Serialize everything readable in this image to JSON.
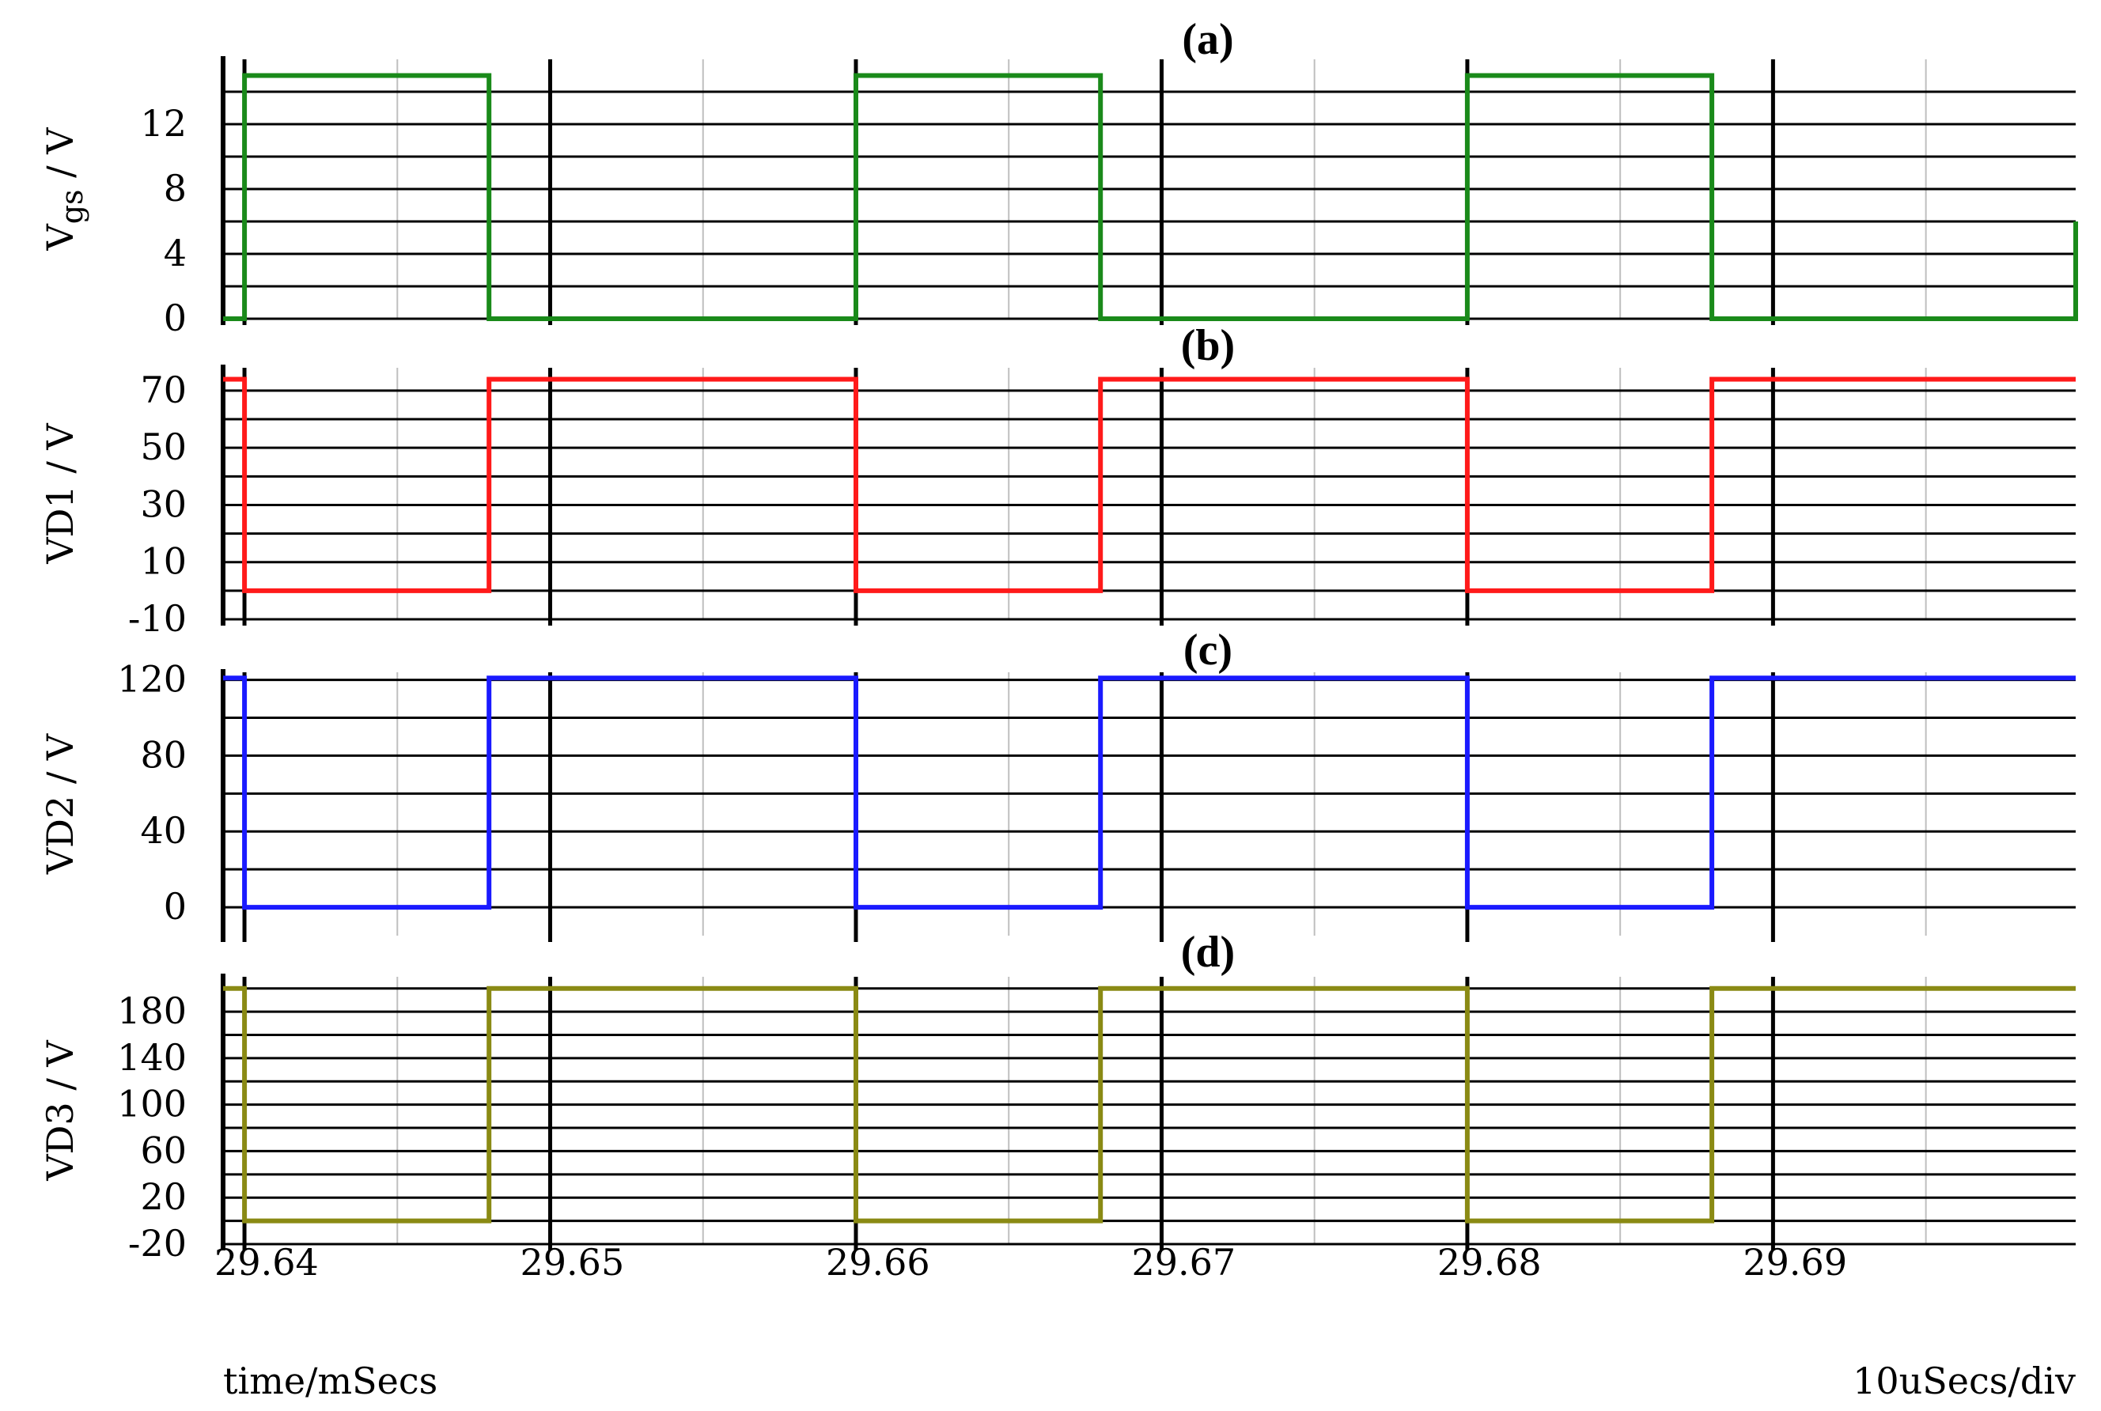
{
  "figure": {
    "x_axis_label": "time/mSecs",
    "time_scale_label": "10uSecs/div",
    "x_tick_labels": [
      "29.64",
      "29.65",
      "29.66",
      "29.67",
      "29.68",
      "29.69"
    ]
  },
  "colors": {
    "vgs": "#1a8a1a",
    "vd1": "#ff1a1a",
    "vd2": "#1a1aff",
    "vd3": "#8a8a14",
    "grid_major": "#000000",
    "grid_minor": "#bfbfbf"
  },
  "chart_data": [
    {
      "type": "line",
      "panel_label": "(a)",
      "ylabel": "Vgs / V",
      "ylabel_main": "V",
      "ylabel_sub": "gs",
      "ylabel_tail": " / V",
      "y_tick_labels": [
        "12",
        "8",
        "4",
        "0"
      ],
      "y_ticks": [
        12,
        8,
        4,
        0
      ],
      "ylim": [
        0,
        16
      ],
      "xlim": [
        29.6393,
        29.6999
      ],
      "grid_y": [
        0,
        2,
        4,
        6,
        8,
        10,
        12,
        14
      ],
      "series": [
        {
          "color_key": "vgs",
          "x": [
            29.6393,
            29.64,
            29.64,
            29.648,
            29.648,
            29.66,
            29.66,
            29.668,
            29.668,
            29.68,
            29.68,
            29.688,
            29.688,
            29.6999,
            29.6999
          ],
          "y": [
            0,
            0,
            15,
            15,
            0,
            0,
            15,
            15,
            0,
            0,
            15,
            15,
            0,
            0,
            6
          ]
        }
      ]
    },
    {
      "type": "line",
      "panel_label": "(b)",
      "ylabel": "VD1 / V",
      "y_tick_labels": [
        "70",
        "50",
        "30",
        "10",
        "-10"
      ],
      "y_ticks": [
        70,
        50,
        30,
        10,
        -10
      ],
      "ylim": [
        -10,
        78
      ],
      "xlim": [
        29.6393,
        29.6999
      ],
      "grid_y": [
        -10,
        0,
        10,
        20,
        30,
        40,
        50,
        60,
        70
      ],
      "series": [
        {
          "color_key": "vd1",
          "x": [
            29.6393,
            29.64,
            29.64,
            29.648,
            29.648,
            29.66,
            29.66,
            29.668,
            29.668,
            29.68,
            29.68,
            29.688,
            29.688,
            29.6999
          ],
          "y": [
            74,
            74,
            0,
            0,
            74,
            74,
            0,
            0,
            74,
            74,
            0,
            0,
            74,
            74
          ]
        }
      ]
    },
    {
      "type": "line",
      "panel_label": "(c)",
      "ylabel": "VD2 / V",
      "y_tick_labels": [
        "120",
        "80",
        "40",
        "0"
      ],
      "y_ticks": [
        120,
        80,
        40,
        0
      ],
      "ylim": [
        -15,
        124
      ],
      "xlim": [
        29.6393,
        29.6999
      ],
      "grid_y": [
        0,
        20,
        40,
        60,
        80,
        100,
        120
      ],
      "series": [
        {
          "color_key": "vd2",
          "x": [
            29.6393,
            29.64,
            29.64,
            29.648,
            29.648,
            29.66,
            29.66,
            29.668,
            29.668,
            29.68,
            29.68,
            29.688,
            29.688,
            29.6999
          ],
          "y": [
            121,
            121,
            0,
            0,
            121,
            121,
            0,
            0,
            121,
            121,
            0,
            0,
            121,
            121
          ]
        }
      ]
    },
    {
      "type": "line",
      "panel_label": "(d)",
      "ylabel": "VD3 / V",
      "y_tick_labels": [
        "180",
        "140",
        "100",
        "60",
        "20",
        "-20"
      ],
      "y_ticks": [
        180,
        140,
        100,
        60,
        20,
        -20
      ],
      "ylim": [
        -20,
        210
      ],
      "xlim": [
        29.6393,
        29.6999
      ],
      "grid_y": [
        -20,
        0,
        20,
        40,
        60,
        80,
        100,
        120,
        140,
        160,
        180,
        200
      ],
      "series": [
        {
          "color_key": "vd3",
          "x": [
            29.6393,
            29.64,
            29.64,
            29.648,
            29.648,
            29.66,
            29.66,
            29.668,
            29.668,
            29.68,
            29.68,
            29.688,
            29.688,
            29.6999
          ],
          "y": [
            200,
            200,
            0,
            0,
            200,
            200,
            0,
            0,
            200,
            200,
            0,
            0,
            200,
            200
          ]
        }
      ]
    }
  ]
}
